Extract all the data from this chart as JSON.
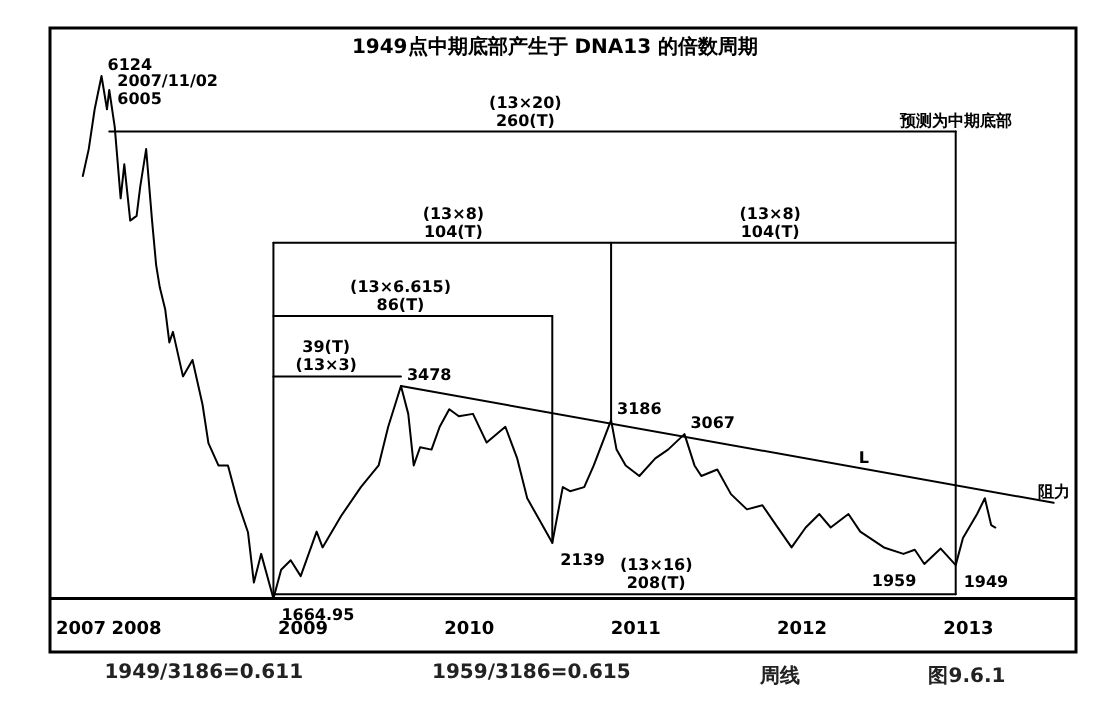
{
  "chart_data": {
    "type": "line",
    "tick_labels": "x",
    "marker": "none",
    "line_style": "solid",
    "grid": false,
    "legend": false,
    "title": "1949点中期底部产生于 DNA13 的倍数周期",
    "xlim": [
      "2007-06-25",
      "2013-08-25"
    ],
    "xticks": [
      {
        "value": "2007-09",
        "label": "2007"
      },
      "2008",
      "2009",
      "2010",
      "2011",
      "2012",
      "2013"
    ],
    "series": [
      {
        "color": "#000000",
        "x": [
          "2007-09-05",
          "2007-09-18",
          "2007-10-01",
          "2007-10-16",
          "2007-10-28",
          "2007-11-02",
          "2007-11-14",
          "2007-11-27",
          "2007-12-05",
          "2007-12-18",
          "2008-01-01",
          "2008-01-09",
          "2008-01-22",
          "2008-02-04",
          "2008-02-13",
          "2008-02-21",
          "2008-03-04",
          "2008-03-13",
          "2008-03-21",
          "2008-04-12",
          "2008-05-03",
          "2008-05-25",
          "2008-06-07",
          "2008-06-29",
          "2008-07-20",
          "2008-08-11",
          "2008-09-02",
          "2008-09-15",
          "2008-10-01",
          "2008-10-28",
          "2008-11-14",
          "2008-12-05",
          "2008-12-27",
          "2009-01-31",
          "2009-02-13",
          "2009-03-26",
          "2009-05-08",
          "2009-06-16",
          "2009-07-07",
          "2009-08-04",
          "2009-08-20",
          "2009-09-01",
          "2009-09-15",
          "2009-10-10",
          "2009-10-28",
          "2009-11-18",
          "2009-12-09",
          "2010-01-09",
          "2010-02-08",
          "2010-03-21",
          "2010-04-16",
          "2010-05-08",
          "2010-07-02",
          "2010-07-25",
          "2010-08-10",
          "2010-09-10",
          "2010-10-01",
          "2010-11-08",
          "2010-11-20",
          "2010-12-10",
          "2011-01-09",
          "2011-02-13",
          "2011-03-13",
          "2011-04-18",
          "2011-05-10",
          "2011-05-25",
          "2011-06-29",
          "2011-07-29",
          "2011-09-02",
          "2011-10-06",
          "2011-11-05",
          "2011-12-09",
          "2012-01-09",
          "2012-02-08",
          "2012-03-04",
          "2012-04-12",
          "2012-05-08",
          "2012-06-29",
          "2012-08-11",
          "2012-09-05",
          "2012-09-26",
          "2012-11-01",
          "2012-12-04",
          "2012-12-20",
          "2013-01-20",
          "2013-02-06",
          "2013-02-20",
          "2013-03-01"
        ],
        "values": [
          5270,
          5500,
          5840,
          6124,
          5840,
          6005,
          5690,
          5080,
          5370,
          4890,
          4930,
          5180,
          5500,
          4890,
          4510,
          4320,
          4130,
          3850,
          3940,
          3560,
          3700,
          3320,
          2990,
          2800,
          2800,
          2480,
          2230,
          1800,
          2045,
          1664.95,
          1910,
          1990,
          1855,
          2235,
          2100,
          2370,
          2615,
          2800,
          3130,
          3478,
          3240,
          2800,
          2955,
          2935,
          3130,
          3280,
          3220,
          3240,
          2995,
          3130,
          2860,
          2520,
          2139,
          2615,
          2580,
          2615,
          2800,
          3186,
          2935,
          2800,
          2710,
          2860,
          2935,
          3067,
          2800,
          2710,
          2765,
          2555,
          2425,
          2460,
          2290,
          2100,
          2270,
          2385,
          2270,
          2385,
          2235,
          2100,
          2045,
          2080,
          1959,
          2090,
          1949,
          2180,
          2385,
          2520,
          2290,
          2270
        ],
        "value_labels": [
          null,
          null,
          null,
          "6124",
          null,
          "2007/11/02\n6005",
          null,
          null,
          null,
          null,
          null,
          null,
          null,
          null,
          null,
          null,
          null,
          null,
          null,
          null,
          null,
          null,
          null,
          null,
          null,
          null,
          null,
          null,
          null,
          "1664.95",
          null,
          null,
          null,
          null,
          null,
          null,
          null,
          null,
          null,
          "3478",
          null,
          null,
          null,
          null,
          null,
          null,
          null,
          null,
          null,
          null,
          null,
          null,
          "2139",
          null,
          null,
          null,
          null,
          "3186",
          null,
          null,
          null,
          null,
          null,
          "3067",
          null,
          null,
          null,
          null,
          null,
          null,
          null,
          null,
          null,
          null,
          null,
          null,
          null,
          null,
          null,
          null,
          "1959",
          null,
          "1949",
          null,
          null,
          null,
          null,
          null
        ]
      },
      {
        "type": "line",
        "color": "#000000",
        "x": [
          "2009-08-04",
          "2013-07-07"
        ],
        "values": [
          3478,
          2481
        ]
      },
      {
        "type": "line",
        "color": "#000000",
        "x": [
          "2007-11-02",
          "2012-12-04"
        ],
        "values": [
          5650,
          5650
        ]
      },
      {
        "type": "line",
        "color": "#000000",
        "x": [
          "2008-10-28",
          "2012-12-04"
        ],
        "values": [
          4700,
          4700
        ]
      },
      {
        "type": "line",
        "color": "#000000",
        "x": [
          "2008-10-28",
          "2010-07-02"
        ],
        "values": [
          4075,
          4075
        ]
      },
      {
        "type": "line",
        "color": "#000000",
        "x": [
          "2008-10-28",
          "2009-08-04"
        ],
        "values": [
          3560,
          3560
        ]
      },
      {
        "type": "line",
        "color": "#000000",
        "x": [
          "2008-10-28",
          "2012-12-04"
        ],
        "values": [
          1700,
          1700
        ]
      },
      {
        "type": "line",
        "color": "#000000",
        "x": [
          "2008-10-28",
          "2008-10-28"
        ],
        "values": [
          1700,
          4700
        ]
      },
      {
        "type": "line",
        "color": "#000000",
        "x": [
          "2010-07-02",
          "2010-07-02"
        ],
        "values": [
          2139,
          4075
        ]
      },
      {
        "type": "line",
        "color": "#000000",
        "x": [
          "2010-11-08",
          "2010-11-08"
        ],
        "values": [
          3186,
          4700
        ]
      },
      {
        "type": "line",
        "color": "#000000",
        "x": [
          "2012-12-04",
          "2012-12-04"
        ],
        "values": [
          1700,
          5650
        ]
      }
    ],
    "annotations": [
      {
        "text": "(13×20)\n260(T)",
        "x": "2010-05-04",
        "y": 5650
      },
      {
        "text": "(13×8)\n104(T)",
        "x": "2009-11-27",
        "y": 4700
      },
      {
        "text": "(13×6.615)\n86(T)",
        "x": "2009-08-03",
        "y": 4075
      },
      {
        "text": "(13×8)\n104(T)",
        "x": "2011-10-23",
        "y": 4700
      },
      {
        "text": "39(T)\n(13×3)",
        "x": "2009-02-21",
        "y": 3560
      },
      {
        "text": "(13×16)\n208(T)",
        "x": "2011-02-15",
        "y": 1700
      },
      {
        "text": "预测为中期底部",
        "x": "2012-12-04",
        "y": 5650
      },
      {
        "text": "L",
        "x": "2012-05-16",
        "y": 2771
      },
      {
        "text": "阻力",
        "x": "2013-07-07",
        "y": 2481
      },
      "1949/3186=0.611",
      "1959/3186=0.615",
      "周线",
      "图9.6.1"
    ]
  }
}
